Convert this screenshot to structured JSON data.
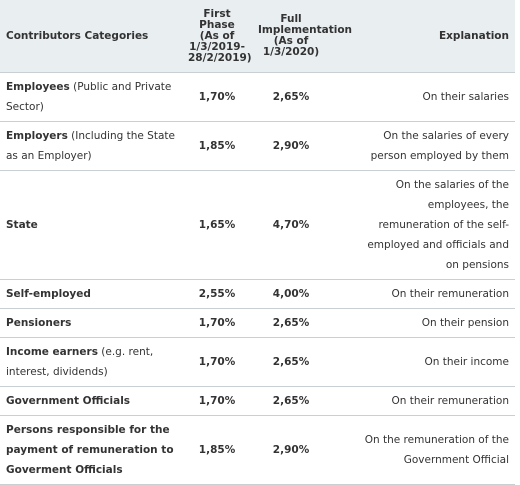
{
  "table": {
    "header": [
      "Contributors Categories",
      "First Phase (As of 1/3/2019-28/2/2019)",
      "Full Implementation (As of 1/3/2020)",
      "Explanation"
    ],
    "rows": [
      {
        "bold": "Employees",
        "rest": " (Public and Private Sector)",
        "first": "1,70%",
        "full": "2,65%",
        "explanation": "On their salaries"
      },
      {
        "bold": "Employers",
        "rest": " (Including the State as an Employer)",
        "first": "1,85%",
        "full": "2,90%",
        "explanation": "On the salaries of every person employed by them"
      },
      {
        "bold": "State",
        "first": "1,65%",
        "full": "4,70%",
        "explanation": "On the salaries of the employees, the remuneration of the self-employed and officials and on pensions"
      },
      {
        "bold": "Self-employed",
        "first": "2,55%",
        "full": "4,00%",
        "explanation": "On their remuneration"
      },
      {
        "bold": "Pensioners",
        "first": "1,70%",
        "full": "2,65%",
        "explanation": "On their pension"
      },
      {
        "bold": "Income earners",
        "rest": " (e.g. rent, interest, dividends)",
        "first": "1,70%",
        "full": "2,65%",
        "explanation": "On their income"
      },
      {
        "bold": "Government Officials",
        "first": "1,70%",
        "full": "2,65%",
        "explanation": "On their remuneration"
      },
      {
        "bold": "Persons responsible for the payment of remuneration to Goverment Officials",
        "first": "1,85%",
        "full": "2,90%",
        "explanation": "On the remuneration of the Government Official"
      }
    ]
  }
}
